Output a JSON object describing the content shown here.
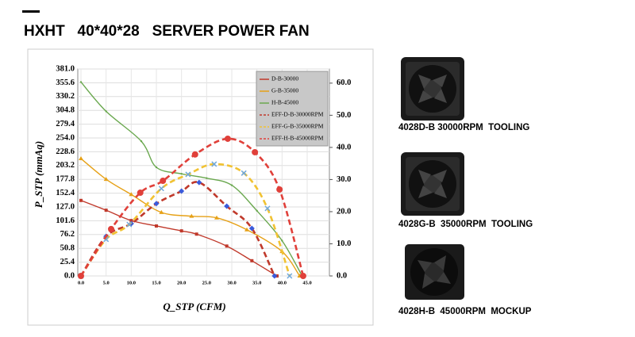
{
  "header": {
    "title": "HXHT   40*40*28   SERVER POWER FAN"
  },
  "products": [
    {
      "caption": "4028D-B 30000RPM  TOOLING"
    },
    {
      "caption": "4028G-B  35000RPM  TOOLING"
    },
    {
      "caption": "4028H-B  45000RPM  MOCKUP"
    }
  ],
  "chart_data": {
    "type": "line",
    "x_label": "Q_STP (CFM)",
    "y_label": "P_STP (mmAq)",
    "xlim": [
      0,
      45
    ],
    "ylim": [
      0,
      381
    ],
    "y2lim": [
      0,
      64.4
    ],
    "xticks": [
      {
        "value": 0,
        "label": "0.0"
      },
      {
        "value": 5,
        "label": "5.0"
      },
      {
        "value": 10,
        "label": "10.0"
      },
      {
        "value": 15,
        "label": "15.0"
      },
      {
        "value": 20,
        "label": "20.0"
      },
      {
        "value": 25,
        "label": "25.0"
      },
      {
        "value": 30,
        "label": "30.0"
      },
      {
        "value": 35,
        "label": "35.0"
      },
      {
        "value": 40,
        "label": "40.0"
      },
      {
        "value": 45,
        "label": "45.0"
      }
    ],
    "yticks": [
      {
        "value": 0,
        "label": "0.0"
      },
      {
        "value": 25.4,
        "label": "25.4"
      },
      {
        "value": 50.8,
        "label": "50.8"
      },
      {
        "value": 76.2,
        "label": "76.2"
      },
      {
        "value": 101.6,
        "label": "101.6"
      },
      {
        "value": 127,
        "label": "127.0"
      },
      {
        "value": 152.4,
        "label": "152.4"
      },
      {
        "value": 177.8,
        "label": "177.8"
      },
      {
        "value": 203.2,
        "label": "203.2"
      },
      {
        "value": 228.6,
        "label": "228.6"
      },
      {
        "value": 254,
        "label": "254.0"
      },
      {
        "value": 279.4,
        "label": "279.4"
      },
      {
        "value": 304.8,
        "label": "304.8"
      },
      {
        "value": 330.2,
        "label": "330.2"
      },
      {
        "value": 355.6,
        "label": "355.6"
      },
      {
        "value": 381,
        "label": "381.0"
      }
    ],
    "y2ticks": [
      {
        "value": 0,
        "label": "0.0"
      },
      {
        "value": 10,
        "label": "10.0"
      },
      {
        "value": 20,
        "label": "20.0"
      },
      {
        "value": 30,
        "label": "30.0"
      },
      {
        "value": 40,
        "label": "40.0"
      },
      {
        "value": 50,
        "label": "50.0"
      },
      {
        "value": 60,
        "label": "60.0"
      }
    ],
    "grid": true,
    "legend": "top-right",
    "series": [
      {
        "name": "D-B-30000",
        "color": "#c0392b",
        "dash": false,
        "marker": "square",
        "x": [
          0,
          5,
          10,
          15,
          20,
          23,
          29,
          34,
          39
        ],
        "values": [
          139,
          121,
          102,
          92,
          83,
          77,
          55,
          28,
          0
        ]
      },
      {
        "name": "G-B-35000",
        "color": "#e6a117",
        "dash": false,
        "marker": "triangle",
        "x": [
          0,
          5,
          10,
          16,
          22,
          27,
          33,
          40,
          43.5
        ],
        "values": [
          216,
          178,
          150,
          117,
          110,
          107,
          85,
          45,
          0
        ]
      },
      {
        "name": "H-B-45000",
        "color": "#6aa84f",
        "dash": false,
        "marker": "none",
        "x": [
          0,
          5,
          12,
          15,
          20,
          25,
          30,
          35,
          40,
          44
        ],
        "values": [
          357,
          303,
          248,
          200,
          188,
          180,
          167,
          120,
          65,
          0
        ]
      },
      {
        "name": "EFF-D-B-30000RPM",
        "color": "#c0392b",
        "dash": true,
        "marker": "diamond",
        "axis": "y2",
        "x": [
          0,
          5,
          10,
          15,
          20,
          23.5,
          29,
          34,
          38.5
        ],
        "values": [
          0,
          12.3,
          16.3,
          22.5,
          26.4,
          29.1,
          21.7,
          14.8,
          0
        ]
      },
      {
        "name": "EFF-G-B-35000RPM",
        "color": "#f1c232",
        "dash": true,
        "marker": "cross",
        "axis": "y2",
        "x": [
          0,
          5,
          9.6,
          16,
          21.3,
          26.5,
          32.4,
          37.1,
          41.5
        ],
        "values": [
          0,
          11.4,
          16,
          27.2,
          31.6,
          34.8,
          32,
          21,
          0
        ]
      },
      {
        "name": "EFF-H-B-45000RPM",
        "color": "#e0403a",
        "dash": true,
        "marker": "circle",
        "axis": "y2",
        "x": [
          0,
          6,
          11.8,
          16.3,
          22.7,
          29.2,
          34.6,
          39.5,
          44.2
        ],
        "values": [
          0,
          14.6,
          25.9,
          29.6,
          37.8,
          42.7,
          38.5,
          26.9,
          0
        ]
      }
    ]
  }
}
